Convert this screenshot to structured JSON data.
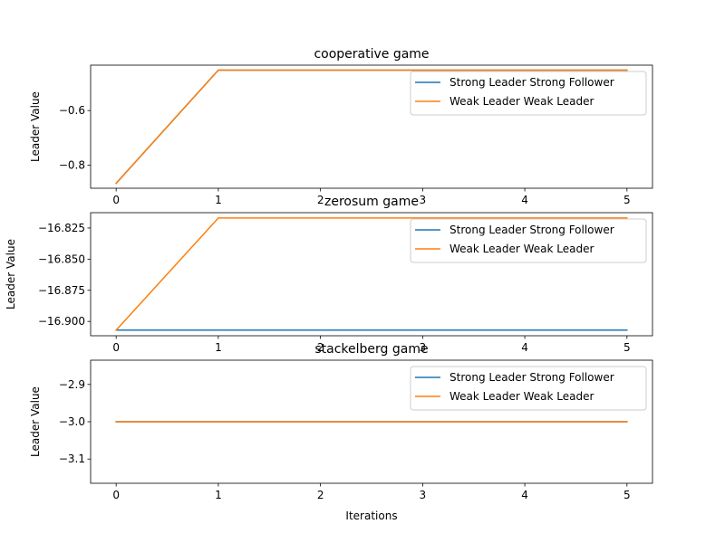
{
  "chart_data": [
    {
      "type": "line",
      "title": "cooperative game",
      "xlabel": "",
      "ylabel": "Leader Value",
      "x": [
        0,
        1,
        2,
        3,
        4,
        5
      ],
      "xticks": [
        "0",
        "1",
        "2",
        "3",
        "4",
        "5"
      ],
      "yticks": [
        -0.8,
        -0.6
      ],
      "ytick_labels": [
        "−0.8",
        "−0.6"
      ],
      "ylim": [
        -0.884,
        -0.434
      ],
      "xlim": [
        -0.25,
        5.25
      ],
      "legend_position": "upper-right",
      "series": [
        {
          "name": "Strong Leader Strong Follower",
          "color": "#1f77b4",
          "values": [
            -0.866,
            -0.452,
            -0.452,
            -0.452,
            -0.452,
            -0.452
          ]
        },
        {
          "name": "Weak Leader Weak Leader",
          "color": "#ff7f0e",
          "values": [
            -0.866,
            -0.452,
            -0.452,
            -0.452,
            -0.452,
            -0.452
          ]
        }
      ]
    },
    {
      "type": "line",
      "title": "zerosum game",
      "xlabel": "",
      "ylabel": "Leader Value",
      "x": [
        0,
        1,
        2,
        3,
        4,
        5
      ],
      "xticks": [
        "0",
        "1",
        "2",
        "3",
        "4",
        "5"
      ],
      "yticks": [
        -16.9,
        -16.875,
        -16.85,
        -16.825
      ],
      "ytick_labels": [
        "−16.900",
        "−16.875",
        "−16.850",
        "−16.825"
      ],
      "ylim": [
        -16.9115,
        -16.8127
      ],
      "xlim": [
        -0.25,
        5.25
      ],
      "legend_position": "upper-right",
      "series": [
        {
          "name": "Strong Leader Strong Follower",
          "color": "#1f77b4",
          "values": [
            -16.907,
            -16.907,
            -16.907,
            -16.907,
            -16.907,
            -16.907
          ]
        },
        {
          "name": "Weak Leader Weak Leader",
          "color": "#ff7f0e",
          "values": [
            -16.907,
            -16.817,
            -16.817,
            -16.817,
            -16.817,
            -16.817
          ]
        }
      ]
    },
    {
      "type": "line",
      "title": "stackelberg game",
      "xlabel": "Iterations",
      "ylabel": "Leader Value",
      "x": [
        0,
        1,
        2,
        3,
        4,
        5
      ],
      "xticks": [
        "0",
        "1",
        "2",
        "3",
        "4",
        "5"
      ],
      "yticks": [
        -3.1,
        -3.0,
        -2.9
      ],
      "ytick_labels": [
        "−3.1",
        "−3.0",
        "−2.9"
      ],
      "ylim": [
        -3.165,
        -2.835
      ],
      "xlim": [
        -0.25,
        5.25
      ],
      "legend_position": "upper-right",
      "series": [
        {
          "name": "Strong Leader Strong Follower",
          "color": "#1f77b4",
          "values": [
            -3.0,
            -3.0,
            -3.0,
            -3.0,
            -3.0,
            -3.0
          ]
        },
        {
          "name": "Weak Leader Weak Leader",
          "color": "#ff7f0e",
          "values": [
            -3.0,
            -3.0,
            -3.0,
            -3.0,
            -3.0,
            -3.0
          ]
        }
      ]
    }
  ]
}
